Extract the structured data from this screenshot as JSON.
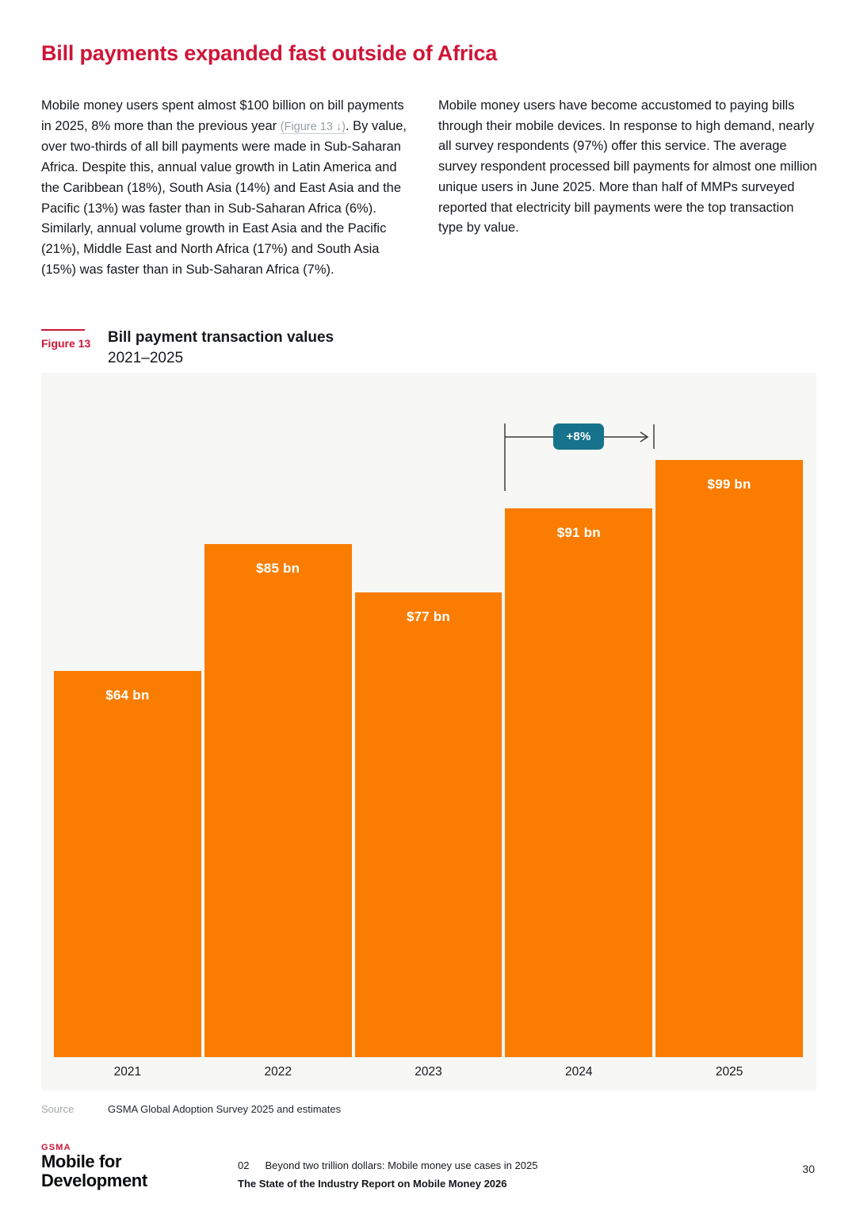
{
  "page": {
    "title": "Bill payments expanded fast outside of Africa"
  },
  "intro": {
    "left": {
      "before_link": "Mobile money users spent almost $100 billion on bill payments in 2025, 8% more than the previous year ",
      "link": "(Figure 13 ↓)",
      "after_link": ". By value, over two-thirds of all bill payments were made in Sub-Saharan Africa. Despite this, annual value growth in Latin America and the Caribbean (18%), South Asia (14%) and East Asia and the Pacific (13%) was faster than in Sub-Saharan Africa (6%). Similarly, annual volume growth in East Asia and the Pacific (21%), Middle East and North Africa (17%) and South Asia (15%) was faster than in Sub-Saharan Africa (7%)."
    },
    "right": "Mobile money users have become accustomed to paying bills through their mobile devices. In response to high demand, nearly all survey respondents (97%) offer this service. The average survey respondent processed bill payments for almost one million unique users in June 2025. More than half of MMPs surveyed reported that electricity bill payments were the top transaction type by value."
  },
  "figure": {
    "label": "Figure 13",
    "title": "Bill payment transaction values",
    "subtitle": "2021–2025"
  },
  "chart_data": {
    "type": "bar",
    "title": "Bill payment transaction values 2021–2025",
    "categories": [
      "2021",
      "2022",
      "2023",
      "2024",
      "2025"
    ],
    "values": [
      64,
      85,
      77,
      91,
      99
    ],
    "bar_labels": [
      "$64 bn",
      "$85 bn",
      "$77 bn",
      "$91 bn",
      "$99 bn"
    ],
    "unit": "US$ billions",
    "xlabel": "",
    "ylabel": "",
    "ylim": [
      0,
      99
    ],
    "grid": false,
    "legend": false,
    "bar_color": "#FA7D02",
    "annotation": {
      "text": "+8%",
      "from": "2024",
      "to": "2025",
      "color": "#16738B"
    }
  },
  "source": {
    "label": "Source",
    "text": "GSMA Global Adoption Survey 2025 and estimates"
  },
  "footer": {
    "brand_top": "GSMA",
    "brand_line1": "Mobile for",
    "brand_line2": "Development",
    "chapter_number": "02",
    "chapter_title": "Beyond two trillion dollars: Mobile money use cases in 2025",
    "report_title": "The State of the Industry Report on Mobile Money 2026",
    "page_number": "30"
  }
}
